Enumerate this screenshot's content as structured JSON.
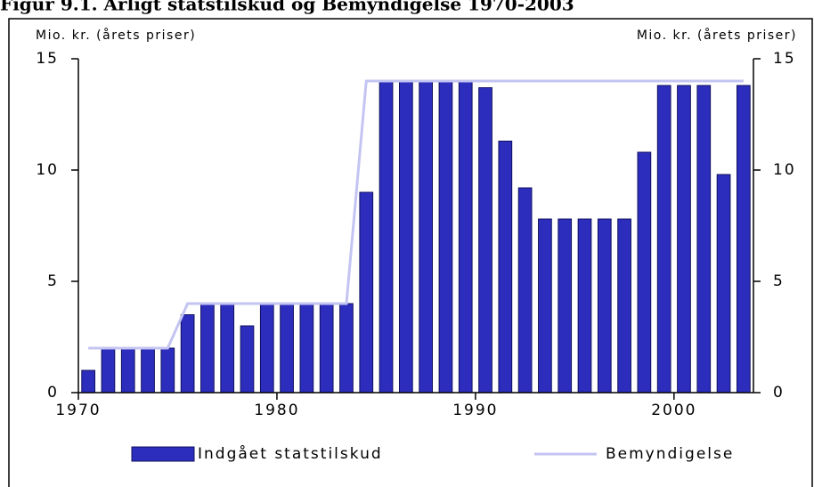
{
  "chart_data": {
    "type": "bar",
    "title": "Figur 9.1. Årligt statstilskud og Bemyndigelse 1970-2003",
    "ylabel": "Mio. kr. (årets priser)",
    "y2label": "Mio. kr. (årets priser)",
    "x": [
      1970,
      1971,
      1972,
      1973,
      1974,
      1975,
      1976,
      1977,
      1978,
      1979,
      1980,
      1981,
      1982,
      1983,
      1984,
      1985,
      1986,
      1987,
      1988,
      1989,
      1990,
      1991,
      1992,
      1993,
      1994,
      1995,
      1996,
      1997,
      1998,
      1999,
      2000,
      2001,
      2002,
      2003
    ],
    "series": [
      {
        "name": "Indgået statstilskud",
        "type": "bar",
        "color": "#2d2dbd",
        "values": [
          1,
          2,
          2,
          2,
          2,
          3.5,
          4,
          4,
          3,
          4,
          4,
          4,
          4,
          4,
          9,
          14,
          14,
          14,
          14,
          14,
          13.7,
          11.3,
          9.2,
          7.8,
          7.8,
          7.8,
          7.8,
          7.8,
          10.8,
          13.8,
          13.8,
          13.8,
          9.8,
          13.8
        ]
      },
      {
        "name": "Bemyndigelse",
        "type": "line",
        "color": "#c4c4f2",
        "values": [
          2,
          2,
          2,
          2,
          2,
          4,
          4,
          4,
          4,
          4,
          4,
          4,
          4,
          4,
          14,
          14,
          14,
          14,
          14,
          14,
          14,
          14,
          14,
          14,
          14,
          14,
          14,
          14,
          14,
          14,
          14,
          14,
          14,
          14
        ]
      }
    ],
    "xlim": [
      1970,
      2004
    ],
    "xticks": [
      1970,
      1980,
      1990,
      2000
    ],
    "ylim": [
      0,
      15
    ],
    "yticks": [
      0,
      5,
      10,
      15
    ],
    "y2lim": [
      0,
      15
    ],
    "y2ticks": [
      0,
      5,
      10,
      15
    ],
    "legend": "bottom"
  }
}
